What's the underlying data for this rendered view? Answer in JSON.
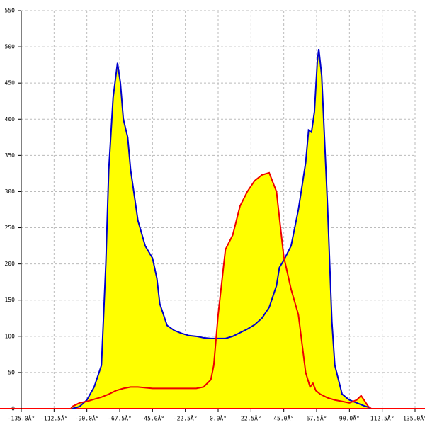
{
  "chart_data": {
    "type": "area",
    "fill_color": "#ffff00",
    "axis_color": "#ff0000",
    "grid": true,
    "xlim": [
      -135,
      135
    ],
    "ylim": [
      0,
      550
    ],
    "xticks": [
      {
        "value": -135,
        "label": "-135.0Â°"
      },
      {
        "value": -112.5,
        "label": "-112.5Â°"
      },
      {
        "value": -90,
        "label": "-90.0Â°"
      },
      {
        "value": -67.5,
        "label": "-67.5Â°"
      },
      {
        "value": -45,
        "label": "-45.0Â°"
      },
      {
        "value": -22.5,
        "label": "-22.5Â°"
      },
      {
        "value": 0,
        "label": "0.0Â°"
      },
      {
        "value": 22.5,
        "label": "22.5Â°"
      },
      {
        "value": 45,
        "label": "45.0Â°"
      },
      {
        "value": 67.5,
        "label": "67.5Â°"
      },
      {
        "value": 90,
        "label": "90.0Â°"
      },
      {
        "value": 112.5,
        "label": "112.5Â°"
      },
      {
        "value": 135,
        "label": "135.0Â°"
      }
    ],
    "yticks": [
      0,
      50,
      100,
      150,
      200,
      250,
      300,
      350,
      400,
      450,
      500,
      550
    ],
    "series": [
      {
        "color": "#0000cc",
        "x": [
          -100,
          -95,
          -90,
          -85,
          -80,
          -77,
          -75,
          -72,
          -69,
          -67,
          -65,
          -62,
          -60,
          -55,
          -50,
          -45,
          -42,
          -40,
          -35,
          -30,
          -25,
          -20,
          -15,
          -10,
          -5,
          0,
          5,
          10,
          15,
          20,
          25,
          30,
          35,
          40,
          42,
          45,
          50,
          55,
          60,
          62,
          64,
          66,
          68,
          69,
          71,
          73,
          75,
          78,
          80,
          85,
          90,
          95,
          100,
          103,
          105
        ],
        "values": [
          0,
          3,
          12,
          30,
          60,
          200,
          330,
          430,
          478,
          450,
          400,
          375,
          330,
          260,
          225,
          208,
          180,
          145,
          115,
          108,
          104,
          101,
          100,
          98,
          97,
          97,
          97,
          100,
          105,
          110,
          116,
          125,
          140,
          170,
          195,
          205,
          225,
          275,
          340,
          385,
          382,
          410,
          480,
          497,
          460,
          370,
          280,
          120,
          60,
          20,
          12,
          8,
          4,
          2,
          0
        ]
      },
      {
        "color": "#ee0000",
        "x": [
          -101,
          -100,
          -95,
          -90,
          -85,
          -80,
          -75,
          -70,
          -65,
          -60,
          -55,
          -50,
          -45,
          -40,
          -35,
          -30,
          -25,
          -20,
          -15,
          -10,
          -5,
          -3,
          0,
          5,
          10,
          15,
          20,
          25,
          30,
          35,
          40,
          45,
          50,
          55,
          60,
          63,
          65,
          67,
          70,
          75,
          80,
          85,
          90,
          95,
          98,
          100,
          103,
          105
        ],
        "values": [
          0,
          3,
          8,
          10,
          13,
          16,
          20,
          25,
          28,
          30,
          30,
          29,
          28,
          28,
          28,
          28,
          28,
          28,
          28,
          30,
          40,
          60,
          130,
          220,
          240,
          280,
          300,
          315,
          323,
          326,
          300,
          210,
          165,
          130,
          50,
          30,
          35,
          25,
          20,
          15,
          12,
          10,
          8,
          12,
          18,
          12,
          3,
          0
        ]
      }
    ]
  }
}
